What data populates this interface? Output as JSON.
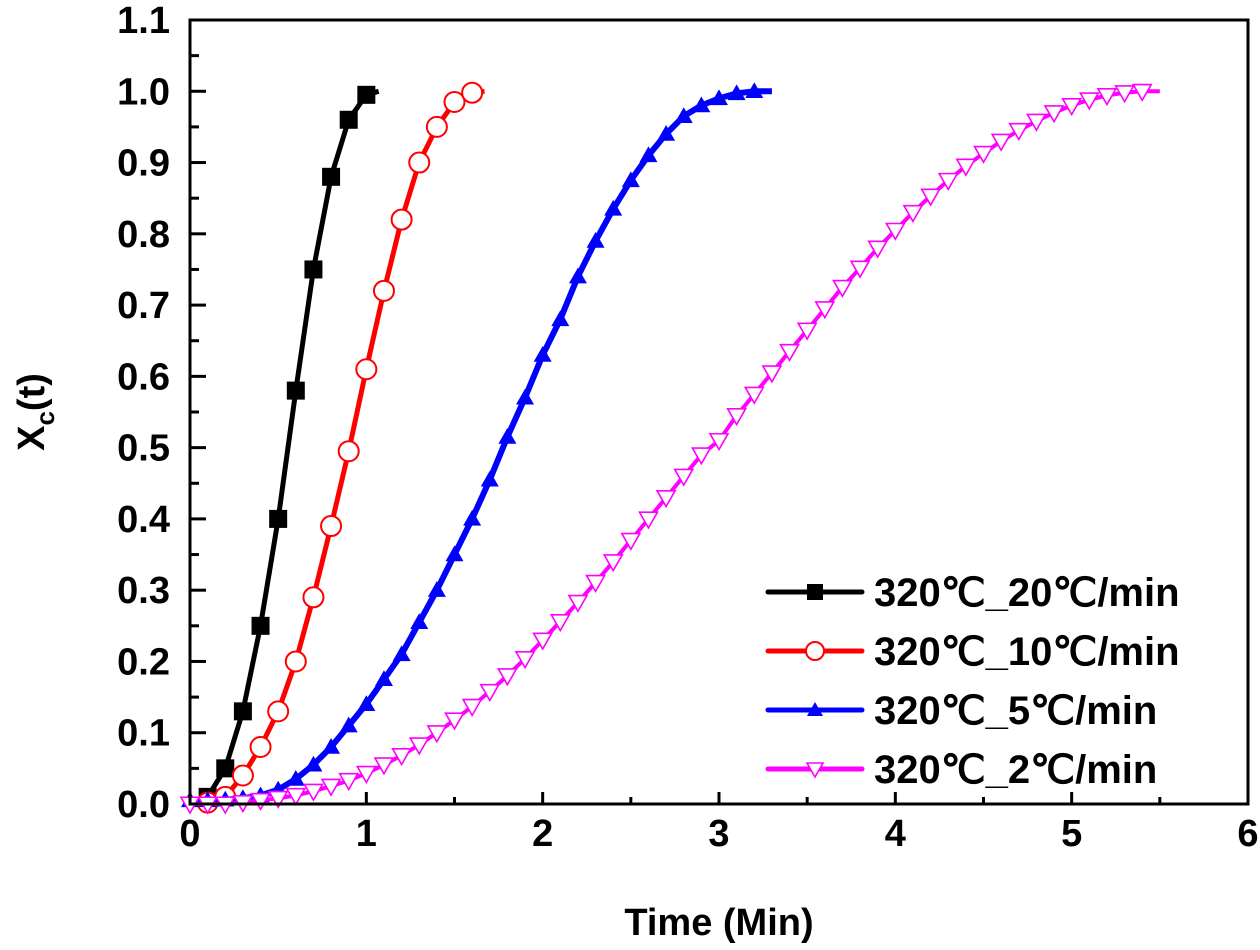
{
  "chart_data": {
    "type": "line",
    "title": "",
    "xlabel": "Time (Min)",
    "ylabel_main": "X",
    "ylabel_sub": "c",
    "ylabel_tail": "(t)",
    "xlim": [
      0,
      6
    ],
    "ylim": [
      0.0,
      1.1
    ],
    "x_ticks": [
      "0",
      "1",
      "2",
      "3",
      "4",
      "5",
      "6"
    ],
    "y_ticks": [
      "0.0",
      "0.1",
      "0.2",
      "0.3",
      "0.4",
      "0.5",
      "0.6",
      "0.7",
      "0.8",
      "0.9",
      "1.0",
      "1.1"
    ],
    "grid": false,
    "legend_position": "bottom-right",
    "series": [
      {
        "name": "320℃_20℃/min",
        "color": "#000000",
        "marker": "filled-square",
        "x": [
          0.1,
          0.2,
          0.3,
          0.4,
          0.5,
          0.6,
          0.7,
          0.8,
          0.9,
          1.0,
          1.07
        ],
        "values": [
          0.01,
          0.05,
          0.13,
          0.25,
          0.4,
          0.58,
          0.75,
          0.88,
          0.96,
          0.995,
          1.0
        ],
        "marker_count": 10
      },
      {
        "name": "320℃_10℃/min",
        "color": "#ff0000",
        "marker": "open-circle",
        "x": [
          0.1,
          0.2,
          0.3,
          0.4,
          0.5,
          0.6,
          0.7,
          0.8,
          0.9,
          1.0,
          1.1,
          1.2,
          1.3,
          1.4,
          1.5,
          1.6,
          1.67
        ],
        "values": [
          0.002,
          0.01,
          0.04,
          0.08,
          0.13,
          0.2,
          0.29,
          0.39,
          0.495,
          0.61,
          0.72,
          0.82,
          0.9,
          0.95,
          0.985,
          0.998,
          1.0
        ],
        "marker_count": 16
      },
      {
        "name": "320℃_5℃/min",
        "color": "#0000ff",
        "marker": "filled-triangle-up",
        "x": [
          0.0,
          0.1,
          0.2,
          0.3,
          0.4,
          0.5,
          0.6,
          0.7,
          0.8,
          0.9,
          1.0,
          1.1,
          1.2,
          1.3,
          1.4,
          1.5,
          1.6,
          1.7,
          1.8,
          1.9,
          2.0,
          2.1,
          2.2,
          2.3,
          2.4,
          2.5,
          2.6,
          2.7,
          2.8,
          2.9,
          3.0,
          3.1,
          3.2,
          3.3
        ],
        "values": [
          0.005,
          0.005,
          0.006,
          0.008,
          0.012,
          0.02,
          0.035,
          0.055,
          0.08,
          0.11,
          0.14,
          0.175,
          0.21,
          0.255,
          0.3,
          0.35,
          0.4,
          0.455,
          0.515,
          0.57,
          0.63,
          0.68,
          0.74,
          0.79,
          0.835,
          0.875,
          0.91,
          0.94,
          0.965,
          0.98,
          0.99,
          0.997,
          1.0,
          1.0
        ],
        "marker_count": 33
      },
      {
        "name": "320℃_2℃/min",
        "color": "#ff00ff",
        "marker": "open-triangle-down",
        "x": [
          0.0,
          0.1,
          0.2,
          0.3,
          0.4,
          0.5,
          0.6,
          0.7,
          0.8,
          0.9,
          1.0,
          1.1,
          1.2,
          1.3,
          1.4,
          1.5,
          1.6,
          1.7,
          1.8,
          1.9,
          2.0,
          2.1,
          2.2,
          2.3,
          2.4,
          2.5,
          2.6,
          2.7,
          2.8,
          2.9,
          3.0,
          3.1,
          3.2,
          3.3,
          3.4,
          3.5,
          3.6,
          3.7,
          3.8,
          3.9,
          4.0,
          4.1,
          4.2,
          4.3,
          4.4,
          4.5,
          4.6,
          4.7,
          4.8,
          4.9,
          5.0,
          5.1,
          5.2,
          5.3,
          5.4,
          5.5
        ],
        "values": [
          0.0,
          0.0,
          0.0,
          0.002,
          0.005,
          0.008,
          0.012,
          0.018,
          0.025,
          0.033,
          0.043,
          0.055,
          0.068,
          0.083,
          0.1,
          0.118,
          0.137,
          0.158,
          0.18,
          0.204,
          0.23,
          0.256,
          0.283,
          0.311,
          0.34,
          0.37,
          0.4,
          0.43,
          0.46,
          0.49,
          0.51,
          0.545,
          0.575,
          0.605,
          0.635,
          0.665,
          0.695,
          0.725,
          0.752,
          0.78,
          0.805,
          0.83,
          0.853,
          0.875,
          0.895,
          0.913,
          0.93,
          0.945,
          0.958,
          0.97,
          0.98,
          0.988,
          0.994,
          0.998,
          1.0,
          1.0
        ],
        "marker_count": 55
      }
    ]
  }
}
